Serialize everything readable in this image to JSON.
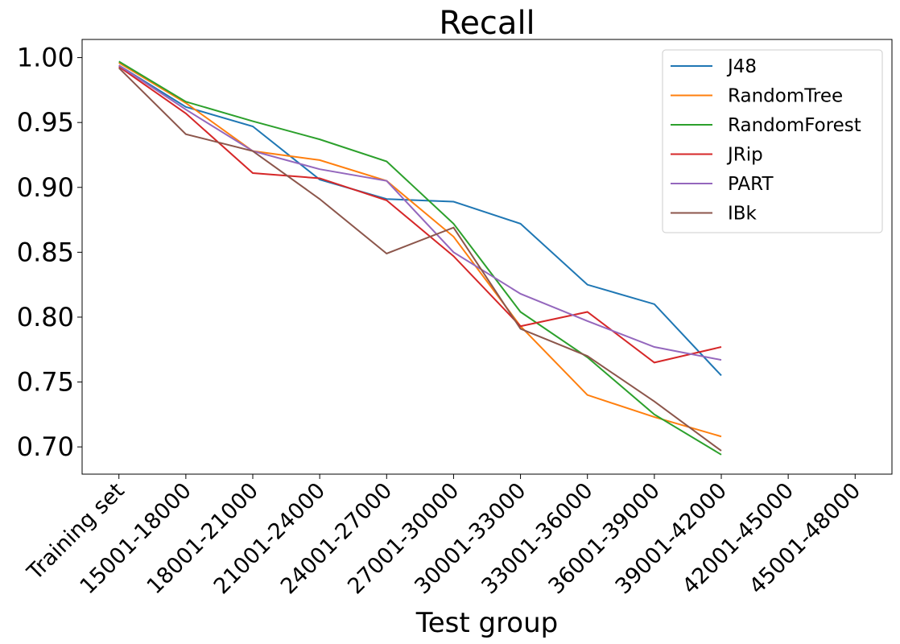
{
  "chart_data": {
    "type": "line",
    "title": "Recall",
    "xlabel": "Test group",
    "categories": [
      "Training set",
      "15001-18000",
      "18001-21000",
      "21001-24000",
      "24001-27000",
      "27001-30000",
      "30001-33000",
      "33001-36000",
      "36001-39000",
      "39001-42000",
      "42001-45000",
      "45001-48000"
    ],
    "series": [
      {
        "name": "J48",
        "color": "#1f77b4",
        "values": [
          0.994,
          0.962,
          0.947,
          0.906,
          0.891,
          0.889,
          0.872,
          0.825,
          0.81,
          0.755,
          null,
          null
        ]
      },
      {
        "name": "RandomTree",
        "color": "#ff7f0e",
        "values": [
          0.996,
          0.965,
          0.928,
          0.921,
          0.905,
          0.862,
          0.793,
          0.74,
          0.723,
          0.708,
          null,
          null
        ]
      },
      {
        "name": "RandomForest",
        "color": "#2ca02c",
        "values": [
          0.997,
          0.966,
          0.951,
          0.937,
          0.92,
          0.872,
          0.804,
          0.769,
          0.725,
          0.694,
          null,
          null
        ]
      },
      {
        "name": "JRip",
        "color": "#d62728",
        "values": [
          0.993,
          0.957,
          0.911,
          0.907,
          0.89,
          0.847,
          0.793,
          0.804,
          0.765,
          0.777,
          null,
          null
        ]
      },
      {
        "name": "PART",
        "color": "#9467bd",
        "values": [
          0.994,
          0.96,
          0.928,
          0.914,
          0.905,
          0.85,
          0.818,
          0.797,
          0.777,
          0.767,
          null,
          null
        ]
      },
      {
        "name": "IBk",
        "color": "#8c564b",
        "values": [
          0.992,
          0.941,
          0.928,
          0.891,
          0.849,
          0.869,
          0.791,
          0.77,
          0.735,
          0.697,
          null,
          null
        ]
      }
    ],
    "ylim": [
      0.679,
      1.014
    ],
    "yticks": [
      {
        "value": 0.7,
        "label": "0.70"
      },
      0.75,
      {
        "value": 0.8,
        "label": "0.80"
      },
      0.85,
      {
        "value": 0.9,
        "label": "0.90"
      },
      0.95,
      {
        "value": 1,
        "label": "1.00"
      }
    ],
    "legend": "upper right"
  }
}
